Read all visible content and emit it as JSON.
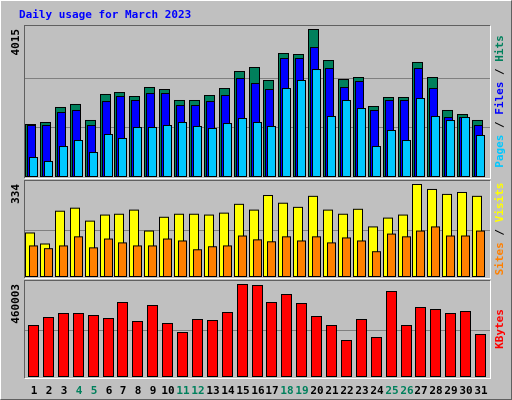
{
  "chart_data": {
    "type": "bar",
    "title": "Daily usage for March 2023",
    "categories": [
      "1",
      "2",
      "3",
      "4",
      "5",
      "6",
      "7",
      "8",
      "9",
      "10",
      "11",
      "12",
      "13",
      "14",
      "15",
      "16",
      "17",
      "18",
      "19",
      "20",
      "21",
      "22",
      "23",
      "24",
      "25",
      "26",
      "27",
      "28",
      "29",
      "30",
      "31"
    ],
    "category_colors": [
      "#000000",
      "#000000",
      "#000000",
      "#00805c",
      "#00805c",
      "#000000",
      "#000000",
      "#000000",
      "#000000",
      "#000000",
      "#00805c",
      "#00805c",
      "#000000",
      "#000000",
      "#000000",
      "#000000",
      "#000000",
      "#00805c",
      "#00805c",
      "#000000",
      "#000000",
      "#000000",
      "#000000",
      "#000000",
      "#00805c",
      "#00805c",
      "#000000",
      "#000000",
      "#000000",
      "#000000",
      "#000000"
    ],
    "legend_separator": " / ",
    "panels": [
      {
        "ylim": [
          0,
          4015
        ],
        "yticks": [
          4015
        ],
        "grid_divisions": 3,
        "series": [
          {
            "name": "Hits",
            "color": "#00805c",
            "values": [
              1420,
              1475,
              1885,
              1967,
              1530,
              2240,
              2294,
              2185,
              2431,
              2376,
              2076,
              2076,
              2212,
              2403,
              2868,
              2977,
              2622,
              3359,
              3332,
              4015,
              3168,
              2649,
              2704,
              1912,
              2158,
              2158,
              3114,
              2704,
              1803,
              1693,
              1530
            ]
          },
          {
            "name": "Files",
            "color": "#0000ff",
            "values": [
              1393,
              1393,
              1748,
              1803,
              1393,
              2048,
              2185,
              2076,
              2267,
              2267,
              1939,
              1939,
              2048,
              2212,
              2677,
              2540,
              2376,
              3223,
              3223,
              3523,
              2950,
              2431,
              2595,
              1803,
              2076,
              2076,
              2950,
              2404,
              1611,
              1611,
              1393
            ]
          },
          {
            "name": "Pages",
            "color": "#00c8ff",
            "values": [
              519,
              410,
              819,
              983,
              655,
              1147,
              1038,
              1338,
              1338,
              1393,
              1475,
              1366,
              1311,
              1447,
              1584,
              1475,
              1366,
              2403,
              2622,
              2922,
              1639,
              2076,
              1857,
              819,
              1256,
              983,
              2130,
              1639,
              1529,
              1611,
              1120
            ]
          }
        ]
      },
      {
        "ylim": [
          0,
          334
        ],
        "yticks": [
          334
        ],
        "grid_divisions": 2,
        "series": [
          {
            "name": "Visits",
            "color": "#ffff00",
            "values": [
              158,
              118,
              237,
              248,
              201,
              223,
              226,
              241,
              165,
              215,
              226,
              226,
              223,
              230,
              262,
              241,
              294,
              266,
              251,
              291,
              241,
              226,
              244,
              180,
              212,
              223,
              334,
              316,
              298,
              305,
              291
            ]
          },
          {
            "name": "Sites",
            "color": "#ff8000",
            "values": [
              111,
              101,
              111,
              144,
              104,
              136,
              122,
              111,
              111,
              136,
              129,
              97,
              108,
              111,
              147,
              133,
              126,
              144,
              129,
              144,
              122,
              140,
              129,
              90,
              154,
              144,
              165,
              180,
              147,
              147,
              165
            ]
          }
        ]
      },
      {
        "ylim": [
          0,
          460003
        ],
        "yticks": [
          460003
        ],
        "grid_divisions": 2,
        "series": [
          {
            "name": "KBytes",
            "color": "#ff0000",
            "values": [
              255000,
              295000,
              315000,
              315000,
              305000,
              290000,
              370000,
              275000,
              355000,
              265000,
              220000,
              285000,
              280000,
              320000,
              460003,
              455000,
              370000,
              410000,
              365000,
              300000,
              255000,
              180000,
              285000,
              195000,
              425000,
              255000,
              345000,
              335000,
              315000,
              325000,
              210000
            ]
          }
        ]
      }
    ]
  }
}
